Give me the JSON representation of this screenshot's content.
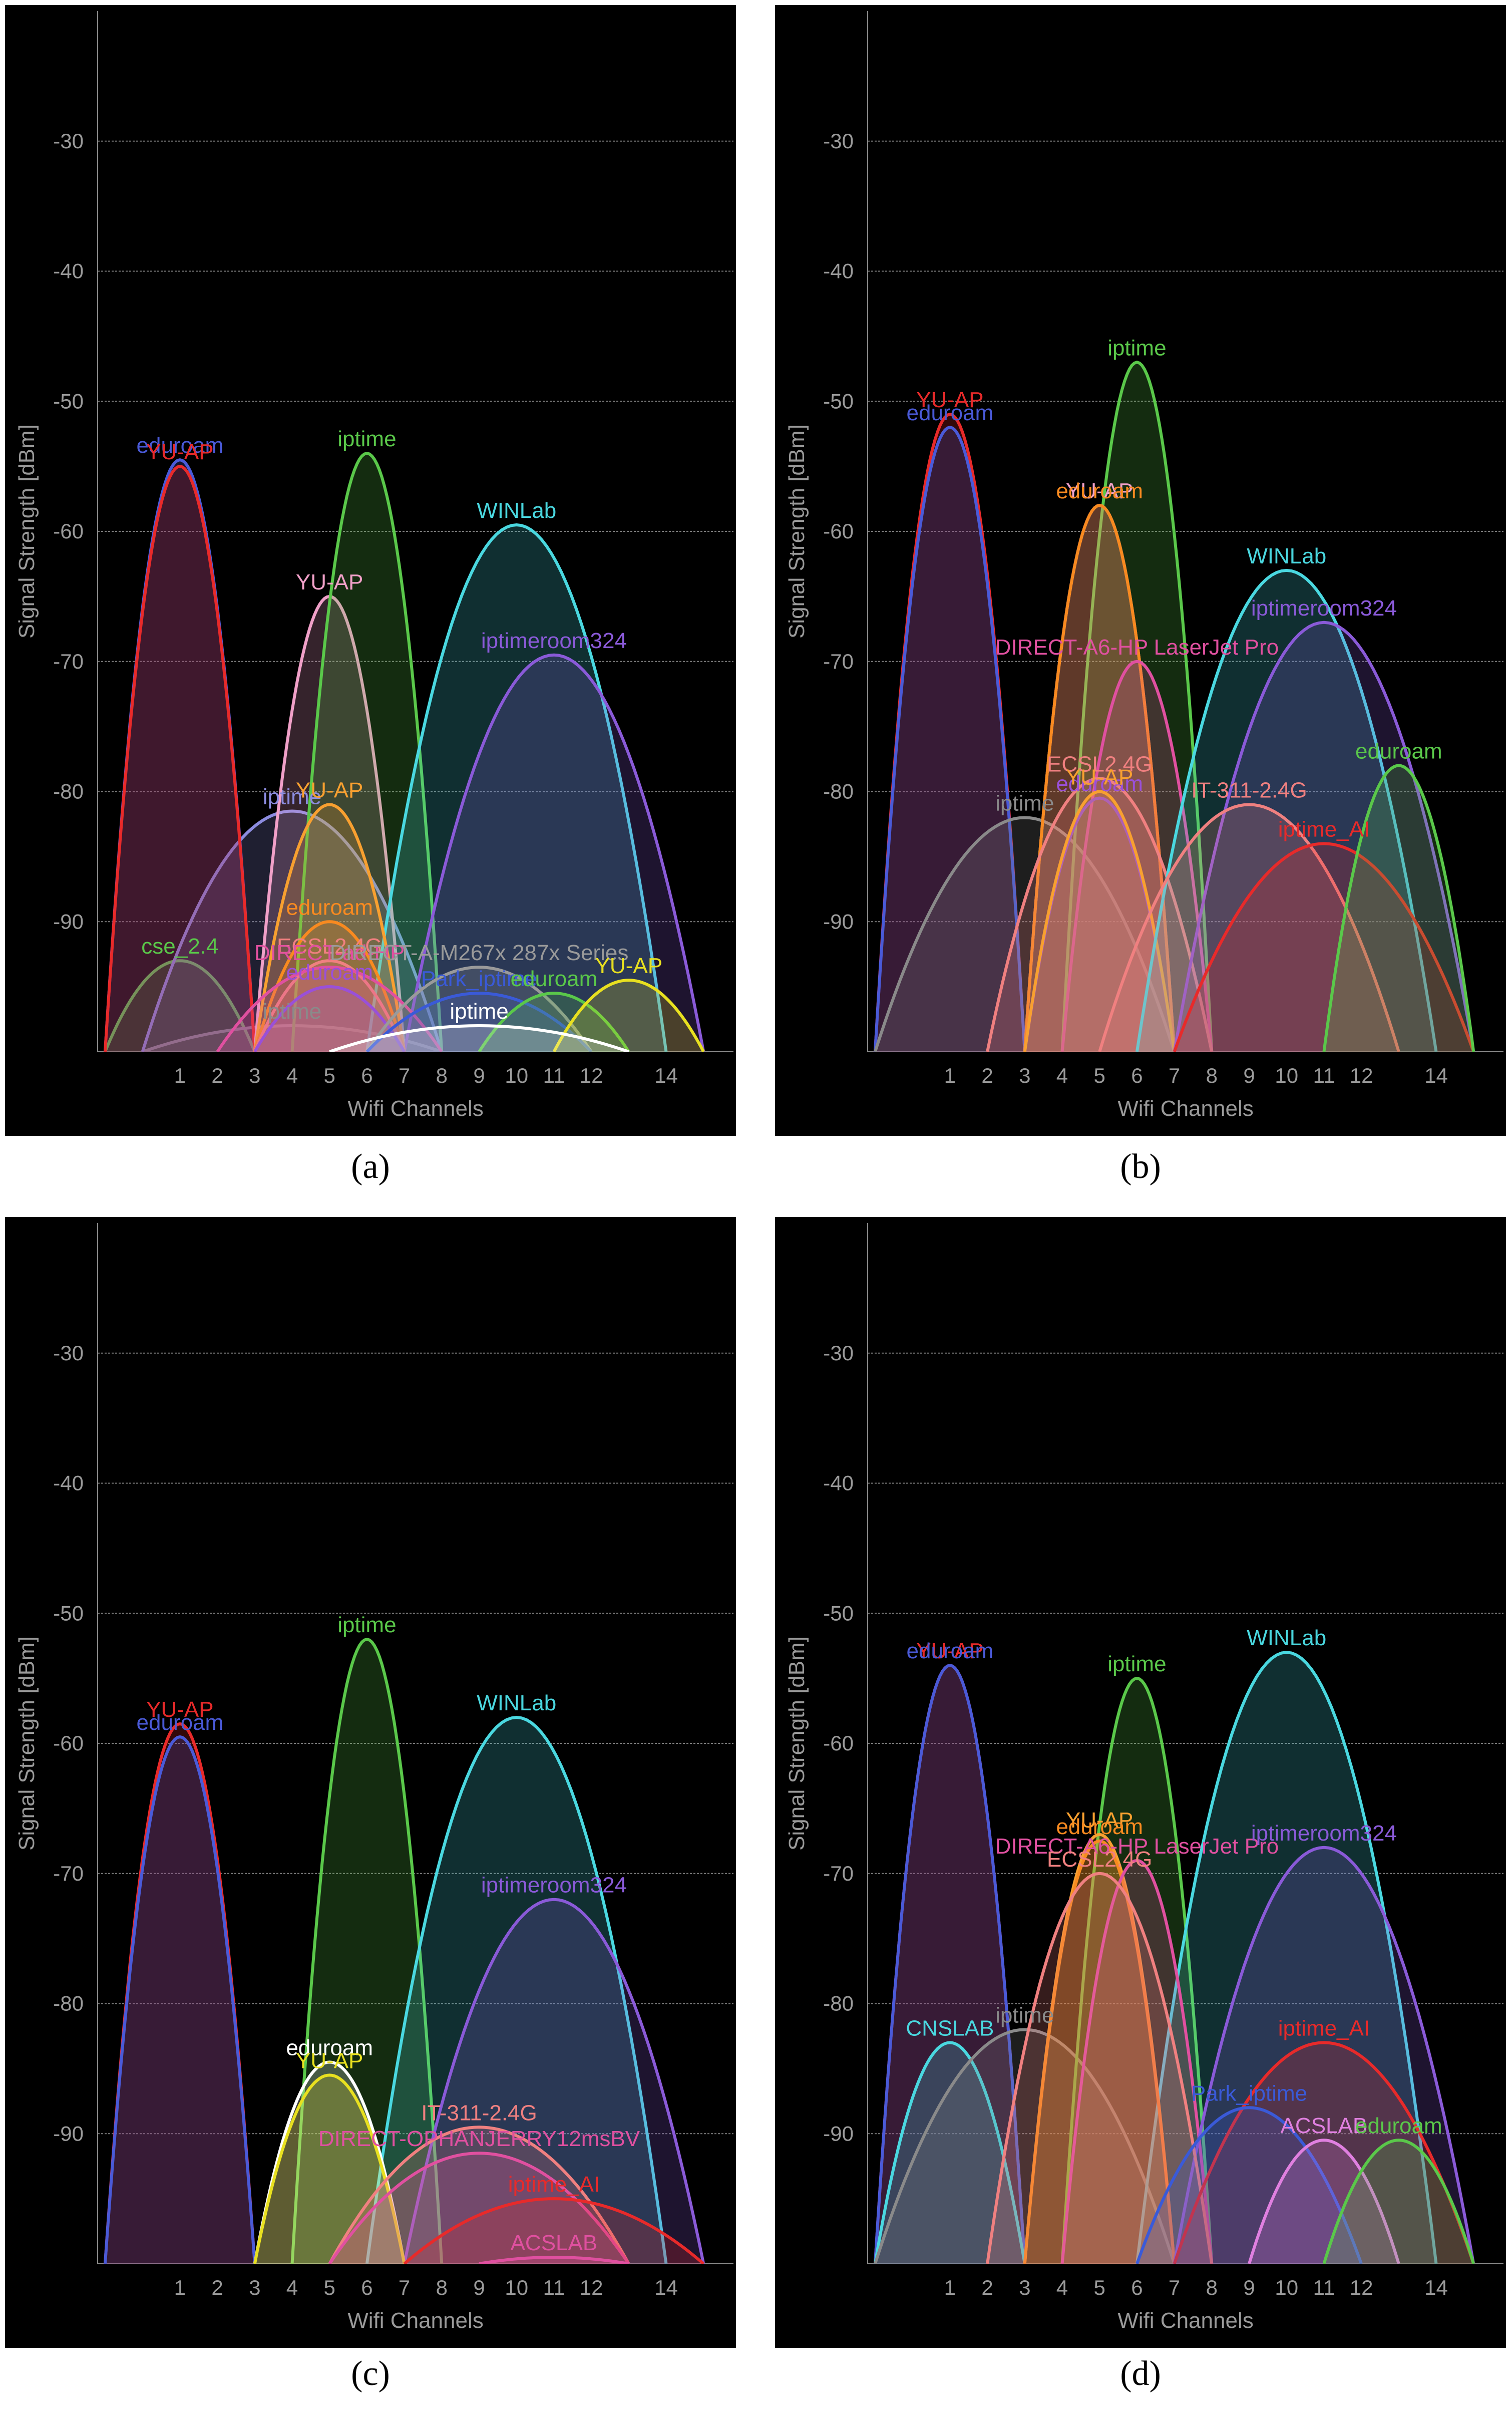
{
  "colors": {
    "background": "#000000",
    "axis": "#8a8a8a",
    "grid": "#7a7a7a",
    "tick_text": "#9a9a9a"
  },
  "chart_data": [
    {
      "type": "area",
      "caption": "(a)",
      "xlabel": "Wifi Channels",
      "ylabel": "Signal Strength [dBm]",
      "xticks": [
        1,
        2,
        3,
        4,
        5,
        6,
        7,
        8,
        9,
        10,
        11,
        12,
        14
      ],
      "yticks": [
        -30,
        -40,
        -50,
        -60,
        -70,
        -80,
        -90
      ],
      "xlim": [
        -1.2,
        15.8
      ],
      "ylim": [
        -100,
        -20
      ],
      "grid": "horizontal",
      "series": [
        {
          "name": "cse_2.4",
          "channel": 1,
          "width": 2,
          "signal": -93,
          "color": "#5ac84a"
        },
        {
          "name": "iptime",
          "channel": 4,
          "width": 4,
          "signal": -98,
          "color": "#8a8a8a"
        },
        {
          "name": "iptime",
          "channel": 4,
          "width": 4,
          "signal": -81.5,
          "color": "#8c8ce0"
        },
        {
          "name": "eduroam",
          "channel": 1,
          "width": 2,
          "signal": -54.5,
          "color": "#4a5ad8"
        },
        {
          "name": "YU-AP",
          "channel": 1,
          "width": 2,
          "signal": -55,
          "color": "#e82a2a"
        },
        {
          "name": "YU-AP",
          "channel": 5,
          "width": 2,
          "signal": -65,
          "color": "#f0a0c8"
        },
        {
          "name": "iptime",
          "channel": 6,
          "width": 2,
          "signal": -54,
          "color": "#5ac84a"
        },
        {
          "name": "WINLab",
          "channel": 10,
          "width": 4,
          "signal": -59.5,
          "color": "#4ad8e0"
        },
        {
          "name": "iptimeroom324",
          "channel": 11,
          "width": 4,
          "signal": -69.5,
          "color": "#8a5ad8"
        },
        {
          "name": "YU-AP",
          "channel": 5,
          "width": 2,
          "signal": -81,
          "color": "#f8a030"
        },
        {
          "name": "eduroam",
          "channel": 5,
          "width": 2,
          "signal": -90,
          "color": "#f88a20"
        },
        {
          "name": "ECSL2.4G",
          "channel": 5,
          "width": 2,
          "signal": -93,
          "color": "#f08080"
        },
        {
          "name": "DIRECT-ad-HP",
          "channel": 5,
          "width": 3,
          "signal": -93.5,
          "color": "#e050a0"
        },
        {
          "name": "eduroam",
          "channel": 5,
          "width": 2,
          "signal": -95,
          "color": "#9a50d8"
        },
        {
          "name": "DIRECT-A-M267x 287x Series",
          "channel": 9,
          "width": 3,
          "signal": -93.5,
          "color": "#9a9a9a"
        },
        {
          "name": "Park_iptime",
          "channel": 9,
          "width": 3,
          "signal": -95.5,
          "color": "#3a5ad8"
        },
        {
          "name": "eduroam",
          "channel": 11,
          "width": 2,
          "signal": -95.5,
          "color": "#5ac84a"
        },
        {
          "name": "YU-AP",
          "channel": 13,
          "width": 2,
          "signal": -94.5,
          "color": "#e8e020"
        },
        {
          "name": "iptime",
          "channel": 9,
          "width": 4,
          "signal": -98,
          "color": "#ffffff"
        }
      ]
    },
    {
      "type": "area",
      "caption": "(b)",
      "xlabel": "Wifi Channels",
      "ylabel": "Signal Strength [dBm]",
      "xticks": [
        1,
        2,
        3,
        4,
        5,
        6,
        7,
        8,
        9,
        10,
        11,
        12,
        14
      ],
      "yticks": [
        -30,
        -40,
        -50,
        -60,
        -70,
        -80,
        -90
      ],
      "xlim": [
        -1.2,
        15.8
      ],
      "ylim": [
        -100,
        -20
      ],
      "grid": "horizontal",
      "series": [
        {
          "name": "YU-AP",
          "channel": 1,
          "width": 2,
          "signal": -51,
          "color": "#e82a2a"
        },
        {
          "name": "eduroam",
          "channel": 1,
          "width": 2,
          "signal": -52,
          "color": "#4a5ad8"
        },
        {
          "name": "iptime",
          "channel": 3,
          "width": 4,
          "signal": -82,
          "color": "#8a8a8a"
        },
        {
          "name": "iptime",
          "channel": 6,
          "width": 2,
          "signal": -47,
          "color": "#5ac84a"
        },
        {
          "name": "YU-AP",
          "channel": 5,
          "width": 2,
          "signal": -58,
          "color": "#f0a0c8"
        },
        {
          "name": "eduroam",
          "channel": 5,
          "width": 2,
          "signal": -58,
          "color": "#f88a20"
        },
        {
          "name": "DIRECT-A6-HP LaserJet Pro",
          "channel": 6,
          "width": 2,
          "signal": -70,
          "color": "#e050a0"
        },
        {
          "name": "ECSL2.4G",
          "channel": 5,
          "width": 3,
          "signal": -79,
          "color": "#f08080"
        },
        {
          "name": "eduroam",
          "channel": 5,
          "width": 2,
          "signal": -80.5,
          "color": "#9a50d8"
        },
        {
          "name": "YU-AP",
          "channel": 5,
          "width": 2,
          "signal": -80,
          "color": "#f8a030"
        },
        {
          "name": "WINLab",
          "channel": 10,
          "width": 4,
          "signal": -63,
          "color": "#4ad8e0"
        },
        {
          "name": "iptimeroom324",
          "channel": 11,
          "width": 4,
          "signal": -67,
          "color": "#8a5ad8"
        },
        {
          "name": "IT-311-2.4G",
          "channel": 9,
          "width": 4,
          "signal": -81,
          "color": "#f08080"
        },
        {
          "name": "iptime_AI",
          "channel": 11,
          "width": 4,
          "signal": -84,
          "color": "#e82a2a"
        },
        {
          "name": "eduroam",
          "channel": 13,
          "width": 2,
          "signal": -78,
          "color": "#5ac84a"
        }
      ]
    },
    {
      "type": "area",
      "caption": "(c)",
      "xlabel": "Wifi Channels",
      "ylabel": "Signal Strength [dBm]",
      "xticks": [
        1,
        2,
        3,
        4,
        5,
        6,
        7,
        8,
        9,
        10,
        11,
        12,
        14
      ],
      "yticks": [
        -30,
        -40,
        -50,
        -60,
        -70,
        -80,
        -90
      ],
      "xlim": [
        -1.2,
        15.8
      ],
      "ylim": [
        -100,
        -20
      ],
      "grid": "horizontal",
      "series": [
        {
          "name": "YU-AP",
          "channel": 1,
          "width": 2,
          "signal": -58.5,
          "color": "#e82a2a"
        },
        {
          "name": "eduroam",
          "channel": 1,
          "width": 2,
          "signal": -59.5,
          "color": "#4a5ad8"
        },
        {
          "name": "iptime",
          "channel": 6,
          "width": 2,
          "signal": -52,
          "color": "#5ac84a"
        },
        {
          "name": "WINLab",
          "channel": 10,
          "width": 4,
          "signal": -58,
          "color": "#4ad8e0"
        },
        {
          "name": "iptimeroom324",
          "channel": 11,
          "width": 4,
          "signal": -72,
          "color": "#8a5ad8"
        },
        {
          "name": "eduroam",
          "channel": 5,
          "width": 2,
          "signal": -84.5,
          "color": "#ffffff"
        },
        {
          "name": "YU-AP",
          "channel": 5,
          "width": 2,
          "signal": -85.5,
          "color": "#e8e020"
        },
        {
          "name": "IT-311-2.4G",
          "channel": 9,
          "width": 4,
          "signal": -89.5,
          "color": "#f08080"
        },
        {
          "name": "DIRECT-OPHANJERRY12msBV",
          "channel": 9,
          "width": 4,
          "signal": -91.5,
          "color": "#e050a0"
        },
        {
          "name": "iptime_AI",
          "channel": 11,
          "width": 4,
          "signal": -95,
          "color": "#e82a2a"
        },
        {
          "name": "ACSLAB",
          "channel": 11,
          "width": 2,
          "signal": -99.5,
          "color": "#e050a0"
        }
      ]
    },
    {
      "type": "area",
      "caption": "(d)",
      "xlabel": "Wifi Channels",
      "ylabel": "Signal Strength [dBm]",
      "xticks": [
        1,
        2,
        3,
        4,
        5,
        6,
        7,
        8,
        9,
        10,
        11,
        12,
        14
      ],
      "yticks": [
        -30,
        -40,
        -50,
        -60,
        -70,
        -80,
        -90
      ],
      "xlim": [
        -1.2,
        15.8
      ],
      "ylim": [
        -100,
        -20
      ],
      "grid": "horizontal",
      "series": [
        {
          "name": "YU-AP",
          "channel": 1,
          "width": 2,
          "signal": -54,
          "color": "#e82a2a"
        },
        {
          "name": "eduroam",
          "channel": 1,
          "width": 2,
          "signal": -54,
          "color": "#4a5ad8"
        },
        {
          "name": "CNSLAB",
          "channel": 1,
          "width": 2,
          "signal": -83,
          "color": "#4ad8e0"
        },
        {
          "name": "iptime",
          "channel": 3,
          "width": 4,
          "signal": -82,
          "color": "#8a8a8a"
        },
        {
          "name": "iptime",
          "channel": 6,
          "width": 2,
          "signal": -55,
          "color": "#5ac84a"
        },
        {
          "name": "WINLab",
          "channel": 10,
          "width": 4,
          "signal": -53,
          "color": "#4ad8e0"
        },
        {
          "name": "YU-AP",
          "channel": 5,
          "width": 2,
          "signal": -67,
          "color": "#f8a030"
        },
        {
          "name": "eduroam",
          "channel": 5,
          "width": 2,
          "signal": -67.5,
          "color": "#f88a20"
        },
        {
          "name": "DIRECT-A6-HP LaserJet Pro",
          "channel": 6,
          "width": 2,
          "signal": -69,
          "color": "#e050a0"
        },
        {
          "name": "iptimeroom324",
          "channel": 11,
          "width": 4,
          "signal": -68,
          "color": "#8a5ad8"
        },
        {
          "name": "ECSL2.4G",
          "channel": 5,
          "width": 3,
          "signal": -70,
          "color": "#f08080"
        },
        {
          "name": "iptime_AI",
          "channel": 11,
          "width": 4,
          "signal": -83,
          "color": "#e82a2a"
        },
        {
          "name": "Park_iptime",
          "channel": 9,
          "width": 3,
          "signal": -88,
          "color": "#3a5ad8"
        },
        {
          "name": "ACSLAB",
          "channel": 11,
          "width": 2,
          "signal": -90.5,
          "color": "#e080e0"
        },
        {
          "name": "eduroam",
          "channel": 13,
          "width": 2,
          "signal": -90.5,
          "color": "#5ac84a"
        }
      ]
    }
  ]
}
